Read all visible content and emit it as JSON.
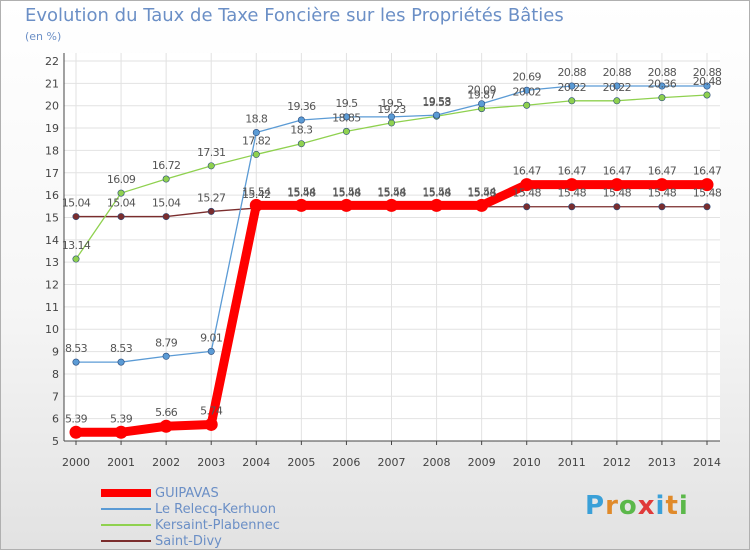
{
  "chart_data": {
    "type": "line",
    "title": "Evolution du Taux de Taxe Foncière sur les Propriétés Bâties",
    "ylabel": "(en %)",
    "xlabel": "",
    "ylim": [
      5,
      22
    ],
    "yticks": [
      "5",
      "6",
      "7",
      "8",
      "9",
      "10",
      "11",
      "12",
      "13",
      "14",
      "15",
      "16",
      "17",
      "18",
      "19",
      "20",
      "21",
      "22"
    ],
    "categories": [
      "2000",
      "2001",
      "2002",
      "2003",
      "2004",
      "2005",
      "2006",
      "2007",
      "2008",
      "2009",
      "2010",
      "2011",
      "2012",
      "2013",
      "2014"
    ],
    "grid": true,
    "legend_position": "bottom-left",
    "series": [
      {
        "name": "GUIPAVAS",
        "color": "#ff0000",
        "values": [
          5.39,
          5.39,
          5.66,
          5.74,
          15.54,
          15.54,
          15.54,
          15.54,
          15.54,
          15.54,
          16.47,
          16.47,
          16.47,
          16.47,
          16.47
        ],
        "labels": [
          "5.39",
          "5.39",
          "5.66",
          "5.74",
          "15.54",
          "15.54",
          "15.54",
          "15.54",
          "15.54",
          "15.54",
          "16.47",
          "16.47",
          "16.47",
          "16.47",
          "16.47"
        ]
      },
      {
        "name": "Le Relecq-Kerhuon",
        "color": "#5b9bd5",
        "values": [
          8.53,
          8.53,
          8.79,
          9.01,
          18.8,
          19.36,
          19.5,
          19.5,
          19.58,
          20.09,
          20.69,
          20.88,
          20.88,
          20.88,
          20.88
        ],
        "labels": [
          "8.53",
          "8.53",
          "8.79",
          "9.01",
          "18.8",
          "19.36",
          "19.5",
          "19.5",
          "19.58",
          "20.09",
          "20.69",
          "20.88",
          "20.88",
          "20.88",
          "20.88"
        ]
      },
      {
        "name": "Kersaint-Plabennec",
        "color": "#8fd14f",
        "values": [
          13.14,
          16.09,
          16.72,
          17.31,
          17.82,
          18.3,
          18.85,
          19.23,
          19.53,
          19.87,
          20.02,
          20.22,
          20.22,
          20.36,
          20.48
        ],
        "labels": [
          "13.14",
          "16.09",
          "16.72",
          "17.31",
          "17.82",
          "18.3",
          "18.85",
          "19.23",
          "19.53",
          "19.87",
          "20.02",
          "20.22",
          "20.22",
          "20.36",
          "20.48"
        ]
      },
      {
        "name": "Saint-Divy",
        "color": "#7b2d2d",
        "values": [
          15.04,
          15.04,
          15.04,
          15.27,
          15.42,
          15.48,
          15.48,
          15.48,
          15.48,
          15.48,
          15.48,
          15.48,
          15.48,
          15.48,
          15.48
        ],
        "labels": [
          "15.04",
          "15.04",
          "15.04",
          "15.27",
          "15.42",
          "15.48",
          "15.48",
          "15.48",
          "15.48",
          "15.48",
          "15.48",
          "15.48",
          "15.48",
          "15.48",
          "15.48"
        ]
      }
    ]
  },
  "logo": {
    "text": "Proxiti",
    "letters": [
      "P",
      "r",
      "o",
      "x",
      "i",
      "t",
      "i"
    ],
    "colors": [
      "#3aa0d8",
      "#e08a2a",
      "#5bb84a",
      "#e03a3a",
      "#3aa0d8",
      "#e08a2a",
      "#5bb84a"
    ]
  }
}
